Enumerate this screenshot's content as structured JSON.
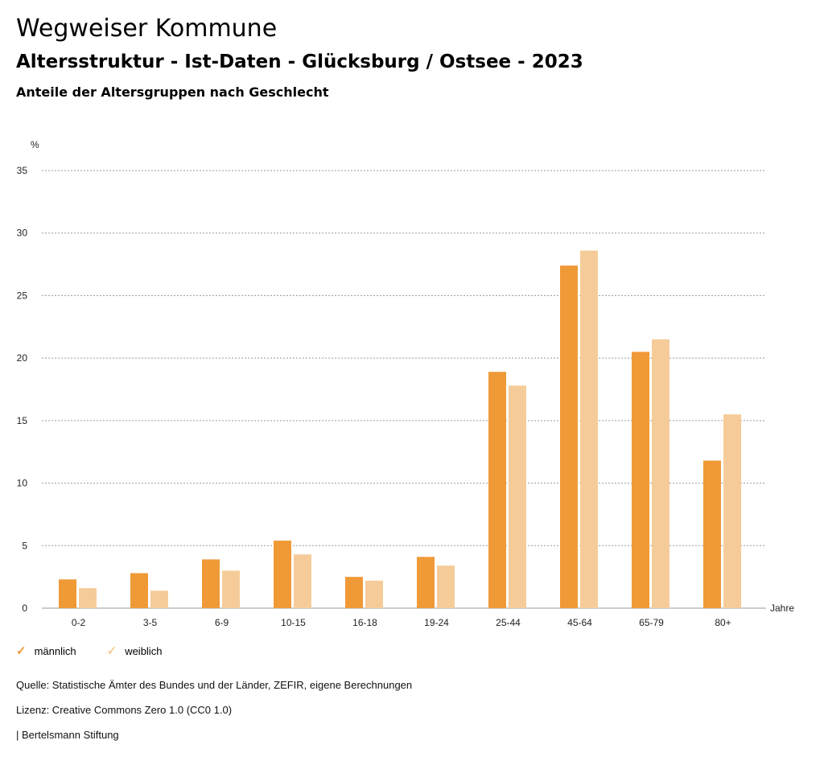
{
  "header": {
    "title": "Wegweiser Kommune",
    "subtitle": "Altersstruktur - Ist-Daten - Glücksburg / Ostsee - 2023",
    "subsubtitle": "Anteile der Altersgruppen nach Geschlecht"
  },
  "colors": {
    "male": "#ef9a37",
    "female": "#f5cc99",
    "grid": "#9a9a9a"
  },
  "chart_data": {
    "type": "bar",
    "title": "Anteile der Altersgruppen nach Geschlecht",
    "ylabel": "%",
    "xlabel": "Jahre",
    "ylim": [
      0,
      35
    ],
    "yticks": [
      0,
      5,
      10,
      15,
      20,
      25,
      30,
      35
    ],
    "grid": true,
    "legend_position": "bottom-left",
    "categories": [
      "0-2",
      "3-5",
      "6-9",
      "10-15",
      "16-18",
      "19-24",
      "25-44",
      "45-64",
      "65-79",
      "80+"
    ],
    "series": [
      {
        "name": "männlich",
        "values": [
          2.3,
          2.8,
          3.9,
          5.4,
          2.5,
          4.1,
          18.9,
          27.4,
          20.5,
          11.8
        ]
      },
      {
        "name": "weiblich",
        "values": [
          1.6,
          1.4,
          3.0,
          4.3,
          2.2,
          3.4,
          17.8,
          28.6,
          21.5,
          15.5
        ]
      }
    ]
  },
  "legend": {
    "male": "männlich",
    "female": "weiblich",
    "check_symbol": "✓"
  },
  "footer": {
    "source": "Quelle: Statistische Ämter des Bundes und der Länder, ZEFIR, eigene Berechnungen",
    "license": "Lizenz: Creative Commons Zero 1.0 (CC0 1.0)",
    "publisher": "| Bertelsmann Stiftung"
  }
}
